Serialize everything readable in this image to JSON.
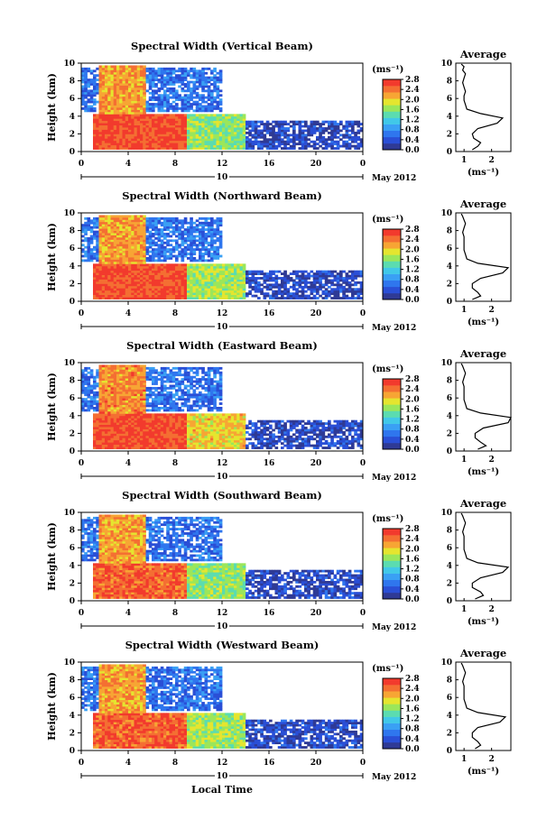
{
  "figure": {
    "xlabel": "Local Time",
    "date_label": "May 2012",
    "day_label": "10",
    "unit_label": "(ms⁻¹)",
    "profile_unit_label": "(ms⁻¹)"
  },
  "colormap": [
    "#2f3a95",
    "#2a4fd6",
    "#2f76ee",
    "#3aa0f4",
    "#41c8e8",
    "#5bdcb0",
    "#9be65a",
    "#e5e52f",
    "#f7a534",
    "#f46f32",
    "#f23a2d"
  ],
  "chart_data": [
    {
      "type": "heatmap",
      "title": "Spectral Width (Vertical Beam)",
      "ylabel": "Height (km)",
      "xlim": [
        0,
        24
      ],
      "ylim": [
        0,
        10
      ],
      "x_ticks": [
        "0",
        "4",
        "8",
        "12",
        "16",
        "20",
        "0"
      ],
      "y_ticks": [
        "0",
        "2",
        "4",
        "6",
        "8",
        "10"
      ],
      "colorbar": {
        "range": [
          0.0,
          2.8
        ],
        "ticks": [
          "0.0",
          "0.4",
          "0.8",
          "1.2",
          "1.6",
          "2.0",
          "2.4",
          "2.8"
        ]
      },
      "regions": [
        {
          "desc": "strong width below ~4.3 km, 01-09 LT",
          "x": [
            1,
            9
          ],
          "y": [
            0.2,
            4.3
          ],
          "value": 2.6
        },
        {
          "desc": "convective columns",
          "x": [
            1.5,
            5.5
          ],
          "y": [
            4,
            9.8
          ],
          "value": 2.2
        },
        {
          "desc": "moderate layer",
          "x": [
            9,
            14
          ],
          "y": [
            0.2,
            4.2
          ],
          "value": 1.6
        },
        {
          "desc": "weak upper background",
          "x": [
            0,
            12
          ],
          "y": [
            4.5,
            9.5
          ],
          "value": 0.6
        },
        {
          "desc": "weak lower layer",
          "x": [
            14,
            24
          ],
          "y": [
            0.2,
            3.5
          ],
          "value": 0.3
        }
      ]
    },
    {
      "type": "heatmap",
      "title": "Spectral Width (Northward Beam)",
      "ylabel": "Height (km)",
      "xlim": [
        0,
        24
      ],
      "ylim": [
        0,
        10
      ],
      "x_ticks": [
        "0",
        "4",
        "8",
        "12",
        "16",
        "20",
        "0"
      ],
      "y_ticks": [
        "0",
        "2",
        "4",
        "6",
        "8",
        "10"
      ],
      "colorbar": {
        "range": [
          0.0,
          2.8
        ],
        "ticks": [
          "0.0",
          "0.4",
          "0.8",
          "1.2",
          "1.6",
          "2.0",
          "2.4",
          "2.8"
        ]
      },
      "regions": [
        {
          "desc": "strong width below ~4.3 km",
          "x": [
            1,
            9
          ],
          "y": [
            0.2,
            4.3
          ],
          "value": 2.6
        },
        {
          "desc": "convective columns",
          "x": [
            1.5,
            5.5
          ],
          "y": [
            4,
            9.8
          ],
          "value": 2.2
        },
        {
          "desc": "moderate layer",
          "x": [
            9,
            14
          ],
          "y": [
            0.2,
            4.3
          ],
          "value": 1.7
        },
        {
          "desc": "weak upper background",
          "x": [
            0,
            12
          ],
          "y": [
            4.5,
            9.5
          ],
          "value": 0.6
        },
        {
          "desc": "weak lower layer",
          "x": [
            14,
            24
          ],
          "y": [
            0.2,
            3.5
          ],
          "value": 0.3
        }
      ]
    },
    {
      "type": "heatmap",
      "title": "Spectral Width (Eastward Beam)",
      "ylabel": "Height (km)",
      "xlim": [
        0,
        24
      ],
      "ylim": [
        0,
        10
      ],
      "x_ticks": [
        "0",
        "4",
        "8",
        "12",
        "16",
        "20",
        "0"
      ],
      "y_ticks": [
        "0",
        "2",
        "4",
        "6",
        "8",
        "10"
      ],
      "colorbar": {
        "range": [
          0.0,
          2.8
        ],
        "ticks": [
          "0.0",
          "0.4",
          "0.8",
          "1.2",
          "1.6",
          "2.0",
          "2.4",
          "2.8"
        ]
      },
      "regions": [
        {
          "desc": "strong width below ~4.3 km",
          "x": [
            1,
            9
          ],
          "y": [
            0.2,
            4.3
          ],
          "value": 2.6
        },
        {
          "desc": "convective columns",
          "x": [
            1.5,
            5.5
          ],
          "y": [
            4,
            9.8
          ],
          "value": 2.3
        },
        {
          "desc": "moderate layer",
          "x": [
            9,
            14
          ],
          "y": [
            0.2,
            4.3
          ],
          "value": 2.0
        },
        {
          "desc": "weak upper background",
          "x": [
            0,
            12
          ],
          "y": [
            4.5,
            9.5
          ],
          "value": 0.6
        },
        {
          "desc": "weak lower layer",
          "x": [
            14,
            24
          ],
          "y": [
            0.2,
            3.5
          ],
          "value": 0.3
        }
      ]
    },
    {
      "type": "heatmap",
      "title": "Spectral Width (Southward Beam)",
      "ylabel": "Height (km)",
      "xlim": [
        0,
        24
      ],
      "ylim": [
        0,
        10
      ],
      "x_ticks": [
        "0",
        "4",
        "8",
        "12",
        "16",
        "20",
        "0"
      ],
      "y_ticks": [
        "0",
        "2",
        "4",
        "6",
        "8",
        "10"
      ],
      "colorbar": {
        "range": [
          0.0,
          2.8
        ],
        "ticks": [
          "0.0",
          "0.4",
          "0.8",
          "1.2",
          "1.6",
          "2.0",
          "2.4",
          "2.8"
        ]
      },
      "regions": [
        {
          "desc": "strong width below ~4.3 km",
          "x": [
            1,
            9
          ],
          "y": [
            0.2,
            4.3
          ],
          "value": 2.5
        },
        {
          "desc": "convective columns",
          "x": [
            1.5,
            5.5
          ],
          "y": [
            4,
            9.8
          ],
          "value": 2.2
        },
        {
          "desc": "moderate layer",
          "x": [
            9,
            14
          ],
          "y": [
            0.2,
            4.3
          ],
          "value": 1.6
        },
        {
          "desc": "weak upper background",
          "x": [
            0,
            12
          ],
          "y": [
            4.5,
            9.5
          ],
          "value": 0.6
        },
        {
          "desc": "weak lower layer",
          "x": [
            14,
            24
          ],
          "y": [
            0.2,
            3.5
          ],
          "value": 0.3
        }
      ]
    },
    {
      "type": "heatmap",
      "title": "Spectral Width (Westward Beam)",
      "ylabel": "Height (km)",
      "xlim": [
        0,
        24
      ],
      "ylim": [
        0,
        10
      ],
      "x_ticks": [
        "0",
        "4",
        "8",
        "12",
        "16",
        "20",
        "0"
      ],
      "y_ticks": [
        "0",
        "2",
        "4",
        "6",
        "8",
        "10"
      ],
      "colorbar": {
        "range": [
          0.0,
          2.8
        ],
        "ticks": [
          "0.0",
          "0.4",
          "0.8",
          "1.2",
          "1.6",
          "2.0",
          "2.4",
          "2.8"
        ]
      },
      "regions": [
        {
          "desc": "strong width below ~4.3 km",
          "x": [
            1,
            9
          ],
          "y": [
            0.2,
            4.3
          ],
          "value": 2.5
        },
        {
          "desc": "convective columns",
          "x": [
            1.5,
            5.5
          ],
          "y": [
            4,
            9.8
          ],
          "value": 2.2
        },
        {
          "desc": "moderate layer",
          "x": [
            9,
            14
          ],
          "y": [
            0.2,
            4.3
          ],
          "value": 1.7
        },
        {
          "desc": "weak upper background",
          "x": [
            0,
            12
          ],
          "y": [
            4.5,
            9.5
          ],
          "value": 0.6
        },
        {
          "desc": "weak lower layer",
          "x": [
            14,
            24
          ],
          "y": [
            0.2,
            3.5
          ],
          "value": 0.3
        }
      ]
    },
    {
      "type": "line",
      "title": "Average",
      "xlabel": "(ms⁻¹)",
      "ylim": [
        0,
        10
      ],
      "x_ticks": [
        "1",
        "2"
      ],
      "y_ticks": [
        "0",
        "2",
        "4",
        "6",
        "8",
        "10"
      ],
      "series": [
        {
          "x": [
            1.3,
            1.5,
            1.6,
            1.35,
            1.3,
            1.5,
            2.2,
            2.4,
            1.6,
            1.1,
            1.05,
            1.0,
            1.0,
            1.05,
            1.0,
            0.95,
            1.0,
            1.05,
            0.95,
            1.0,
            0.9
          ],
          "y": [
            0.2,
            0.6,
            1.0,
            1.5,
            2.0,
            2.6,
            3.2,
            3.8,
            4.3,
            4.8,
            5.3,
            5.8,
            6.3,
            6.8,
            7.3,
            7.8,
            8.3,
            8.8,
            9.2,
            9.6,
            9.9
          ]
        }
      ]
    },
    {
      "type": "line",
      "title": "Average",
      "xlabel": "(ms⁻¹)",
      "ylim": [
        0,
        10
      ],
      "x_ticks": [
        "1",
        "2"
      ],
      "y_ticks": [
        "0",
        "2",
        "4",
        "6",
        "8",
        "10"
      ],
      "series": [
        {
          "x": [
            1.3,
            1.6,
            1.5,
            1.3,
            1.3,
            1.6,
            2.4,
            2.6,
            1.5,
            1.1,
            1.05,
            1.0,
            1.0,
            1.0,
            1.0,
            0.95,
            1.0,
            1.05,
            1.0,
            0.95,
            0.9
          ],
          "y": [
            0.2,
            0.6,
            1.0,
            1.5,
            2.0,
            2.6,
            3.2,
            3.8,
            4.3,
            4.8,
            5.3,
            5.8,
            6.3,
            6.8,
            7.3,
            7.8,
            8.3,
            8.8,
            9.2,
            9.6,
            9.9
          ]
        }
      ]
    },
    {
      "type": "line",
      "title": "Average",
      "xlabel": "(ms⁻¹)",
      "ylim": [
        0,
        10
      ],
      "x_ticks": [
        "1",
        "2"
      ],
      "y_ticks": [
        "0",
        "2",
        "4",
        "6",
        "8",
        "10"
      ],
      "series": [
        {
          "x": [
            1.5,
            1.8,
            1.6,
            1.4,
            1.4,
            1.7,
            2.6,
            2.7,
            1.6,
            1.1,
            1.05,
            1.0,
            1.0,
            1.0,
            1.0,
            0.95,
            1.0,
            1.05,
            1.0,
            0.95,
            0.9
          ],
          "y": [
            0.2,
            0.6,
            1.0,
            1.5,
            2.0,
            2.6,
            3.2,
            3.8,
            4.3,
            4.8,
            5.3,
            5.8,
            6.3,
            6.8,
            7.3,
            7.8,
            8.3,
            8.8,
            9.2,
            9.6,
            9.9
          ]
        }
      ]
    },
    {
      "type": "line",
      "title": "Average",
      "xlabel": "(ms⁻¹)",
      "ylim": [
        0,
        10
      ],
      "x_ticks": [
        "1",
        "2"
      ],
      "y_ticks": [
        "0",
        "2",
        "4",
        "6",
        "8",
        "10"
      ],
      "series": [
        {
          "x": [
            1.4,
            1.7,
            1.6,
            1.3,
            1.3,
            1.6,
            2.4,
            2.6,
            1.5,
            1.1,
            1.05,
            1.0,
            1.0,
            1.0,
            1.0,
            0.95,
            1.0,
            1.05,
            1.0,
            0.95,
            0.9
          ],
          "y": [
            0.2,
            0.6,
            1.0,
            1.5,
            2.0,
            2.6,
            3.2,
            3.8,
            4.3,
            4.8,
            5.3,
            5.8,
            6.3,
            6.8,
            7.3,
            7.8,
            8.3,
            8.8,
            9.2,
            9.6,
            9.9
          ]
        }
      ]
    },
    {
      "type": "line",
      "title": "Average",
      "xlabel": "(ms⁻¹)",
      "ylim": [
        0,
        10
      ],
      "x_ticks": [
        "1",
        "2"
      ],
      "y_ticks": [
        "0",
        "2",
        "4",
        "6",
        "8",
        "10"
      ],
      "series": [
        {
          "x": [
            1.4,
            1.6,
            1.5,
            1.3,
            1.3,
            1.5,
            2.3,
            2.5,
            1.5,
            1.1,
            1.05,
            1.0,
            1.0,
            1.0,
            1.0,
            0.95,
            1.0,
            1.05,
            1.0,
            0.95,
            0.9
          ],
          "y": [
            0.2,
            0.6,
            1.0,
            1.5,
            2.0,
            2.6,
            3.2,
            3.8,
            4.3,
            4.8,
            5.3,
            5.8,
            6.3,
            6.8,
            7.3,
            7.8,
            8.3,
            8.8,
            9.2,
            9.6,
            9.9
          ]
        }
      ]
    }
  ]
}
